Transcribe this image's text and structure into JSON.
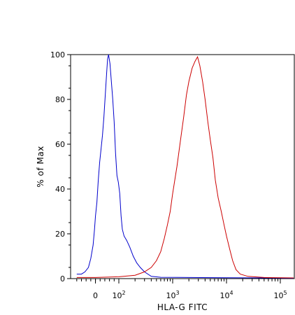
{
  "chart_data": {
    "type": "line",
    "title": "",
    "xlabel": "HLA-G  FITC",
    "ylabel": "% of Max",
    "x_scale": "biexponential",
    "x_ticks": [
      {
        "value": 0,
        "label": "0"
      },
      {
        "value": 100,
        "label": "10",
        "exp": "2"
      },
      {
        "value": 1000,
        "label": "10",
        "exp": "3"
      },
      {
        "value": 10000,
        "label": "10",
        "exp": "4"
      },
      {
        "value": 100000,
        "label": "10",
        "exp": "5"
      }
    ],
    "y_ticks": [
      0,
      20,
      40,
      60,
      80,
      100
    ],
    "ylim": [
      0,
      100
    ],
    "grid": false,
    "series": [
      {
        "color": "#0000cc",
        "points": [
          [
            -80,
            2
          ],
          [
            -60,
            2
          ],
          [
            -45,
            3
          ],
          [
            -30,
            5
          ],
          [
            -20,
            9
          ],
          [
            -10,
            15
          ],
          [
            -4,
            22
          ],
          [
            0,
            28
          ],
          [
            6,
            34
          ],
          [
            12,
            44
          ],
          [
            18,
            52
          ],
          [
            24,
            58
          ],
          [
            30,
            64
          ],
          [
            36,
            72
          ],
          [
            42,
            82
          ],
          [
            48,
            92
          ],
          [
            52,
            98
          ],
          [
            56,
            100
          ],
          [
            62,
            96
          ],
          [
            68,
            88
          ],
          [
            74,
            80
          ],
          [
            80,
            70
          ],
          [
            86,
            56
          ],
          [
            92,
            46
          ],
          [
            98,
            43
          ],
          [
            104,
            38
          ],
          [
            110,
            28
          ],
          [
            116,
            22
          ],
          [
            125,
            19
          ],
          [
            140,
            17
          ],
          [
            160,
            14
          ],
          [
            185,
            10
          ],
          [
            215,
            7
          ],
          [
            250,
            5
          ],
          [
            300,
            3
          ],
          [
            400,
            1
          ],
          [
            600,
            0.6
          ],
          [
            2000,
            0.5
          ],
          [
            10000,
            0.4
          ],
          [
            50000,
            0.3
          ],
          [
            200000,
            0.2
          ]
        ]
      },
      {
        "color": "#cc0000",
        "points": [
          [
            -80,
            0.5
          ],
          [
            0,
            0.5
          ],
          [
            100,
            0.8
          ],
          [
            200,
            1.5
          ],
          [
            300,
            3
          ],
          [
            400,
            5
          ],
          [
            500,
            8
          ],
          [
            600,
            12
          ],
          [
            700,
            18
          ],
          [
            800,
            24
          ],
          [
            900,
            30
          ],
          [
            1000,
            38
          ],
          [
            1200,
            50
          ],
          [
            1400,
            62
          ],
          [
            1600,
            72
          ],
          [
            1800,
            82
          ],
          [
            2000,
            88
          ],
          [
            2300,
            94
          ],
          [
            2600,
            97
          ],
          [
            2900,
            99
          ],
          [
            3200,
            95
          ],
          [
            3600,
            88
          ],
          [
            4000,
            80
          ],
          [
            4500,
            70
          ],
          [
            5000,
            62
          ],
          [
            5600,
            54
          ],
          [
            6200,
            44
          ],
          [
            7000,
            36
          ],
          [
            8000,
            30
          ],
          [
            9000,
            24
          ],
          [
            10000,
            19
          ],
          [
            11500,
            13
          ],
          [
            13000,
            8
          ],
          [
            15000,
            4
          ],
          [
            18000,
            2
          ],
          [
            25000,
            1
          ],
          [
            50000,
            0.5
          ],
          [
            200000,
            0.3
          ]
        ]
      }
    ]
  }
}
